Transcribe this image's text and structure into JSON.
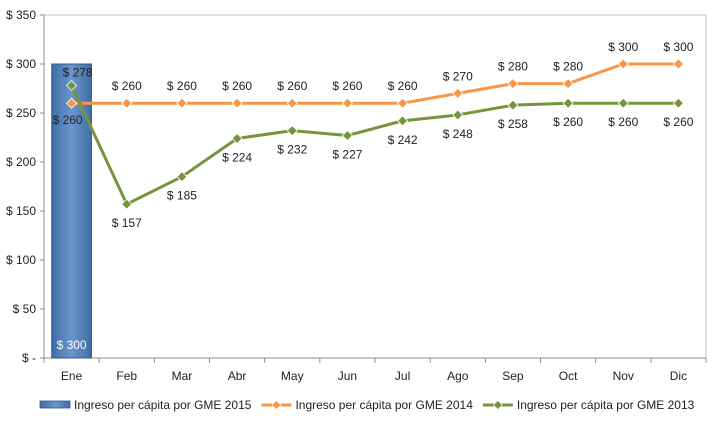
{
  "chart_data": {
    "type": "bar",
    "title": "",
    "xlabel": "",
    "ylabel": "",
    "ylim": [
      0,
      350
    ],
    "yticks": [
      0,
      50,
      100,
      150,
      200,
      250,
      300,
      350
    ],
    "ytick_labels": [
      "$ -",
      "$ 50",
      "$ 100",
      "$ 150",
      "$ 200",
      "$ 250",
      "$ 300",
      "$ 350"
    ],
    "categories": [
      "Ene",
      "Feb",
      "Mar",
      "Abr",
      "May",
      "Jun",
      "Jul",
      "Ago",
      "Sep",
      "Oct",
      "Nov",
      "Dic"
    ],
    "grid": false,
    "legend_position": "bottom",
    "series": [
      {
        "name": "Ingreso per cápita por GME 2015",
        "type": "bar",
        "color": "#4F81BD",
        "values": [
          300,
          null,
          null,
          null,
          null,
          null,
          null,
          null,
          null,
          null,
          null,
          null
        ],
        "labels": [
          "$ 300",
          null,
          null,
          null,
          null,
          null,
          null,
          null,
          null,
          null,
          null,
          null
        ]
      },
      {
        "name": "Ingreso per cápita por GME 2014",
        "type": "line",
        "color": "#F79646",
        "values": [
          260,
          260,
          260,
          260,
          260,
          260,
          260,
          270,
          280,
          280,
          300,
          300
        ],
        "labels": [
          "$ 260",
          "$ 260",
          "$ 260",
          "$ 260",
          "$ 260",
          "$ 260",
          "$ 260",
          "$ 270",
          "$ 280",
          "$ 280",
          "$ 300",
          "$ 300"
        ]
      },
      {
        "name": "Ingreso per cápita por GME 2013",
        "type": "line",
        "color": "#77933C",
        "values": [
          278,
          157,
          185,
          224,
          232,
          227,
          242,
          248,
          258,
          260,
          260,
          260
        ],
        "labels": [
          "$ 278",
          "$ 157",
          "$ 185",
          "$ 224",
          "$ 232",
          "$ 227",
          "$ 242",
          "$ 248",
          "$ 258",
          "$ 260",
          "$ 260",
          "$ 260"
        ]
      }
    ]
  }
}
